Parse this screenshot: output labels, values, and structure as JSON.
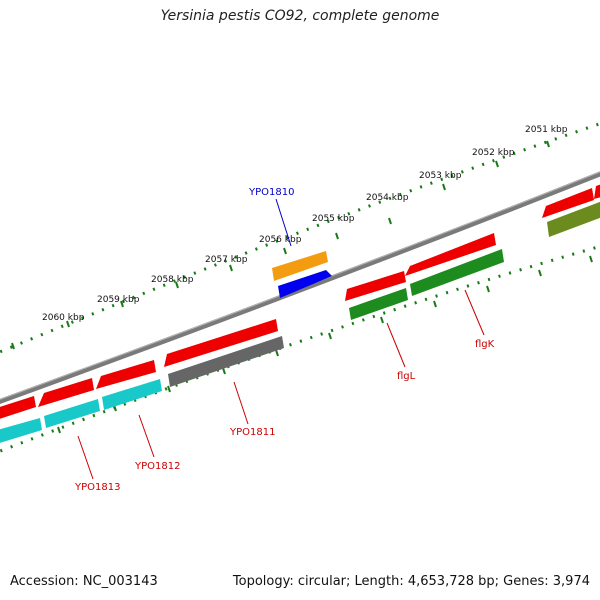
{
  "title": "Yersinia pestis CO92, complete genome",
  "footer": {
    "accession": "Accession: NC_003143",
    "topology": "Topology: circular; Length: 4,653,728 bp; Genes: 3,974"
  },
  "scale_labels": [
    "2051 kbp",
    "2052 kbp",
    "2053 kbp",
    "2054 kbp",
    "2055 kbp",
    "2056 kbp",
    "2057 kbp",
    "2058 kbp",
    "2059 kbp",
    "2060 kbp"
  ],
  "gene_labels": [
    {
      "name": "YPO1810",
      "color": "#0000cc"
    },
    {
      "name": "flgK",
      "color": "#cc0000"
    },
    {
      "name": "flgL",
      "color": "#cc0000"
    },
    {
      "name": "YPO1811",
      "color": "#cc0000"
    },
    {
      "name": "YPO1812",
      "color": "#cc0000"
    },
    {
      "name": "YPO1813",
      "color": "#cc0000"
    }
  ],
  "colors": {
    "backbone": "#808080",
    "tick": "#1a7a1a",
    "cds": "#ee0000",
    "green_feature": "#1e8b1e",
    "cyan_feature": "#19c9c9",
    "gray_feature": "#666666",
    "orange_feature": "#f39c12",
    "blue_feature": "#0000ee"
  }
}
